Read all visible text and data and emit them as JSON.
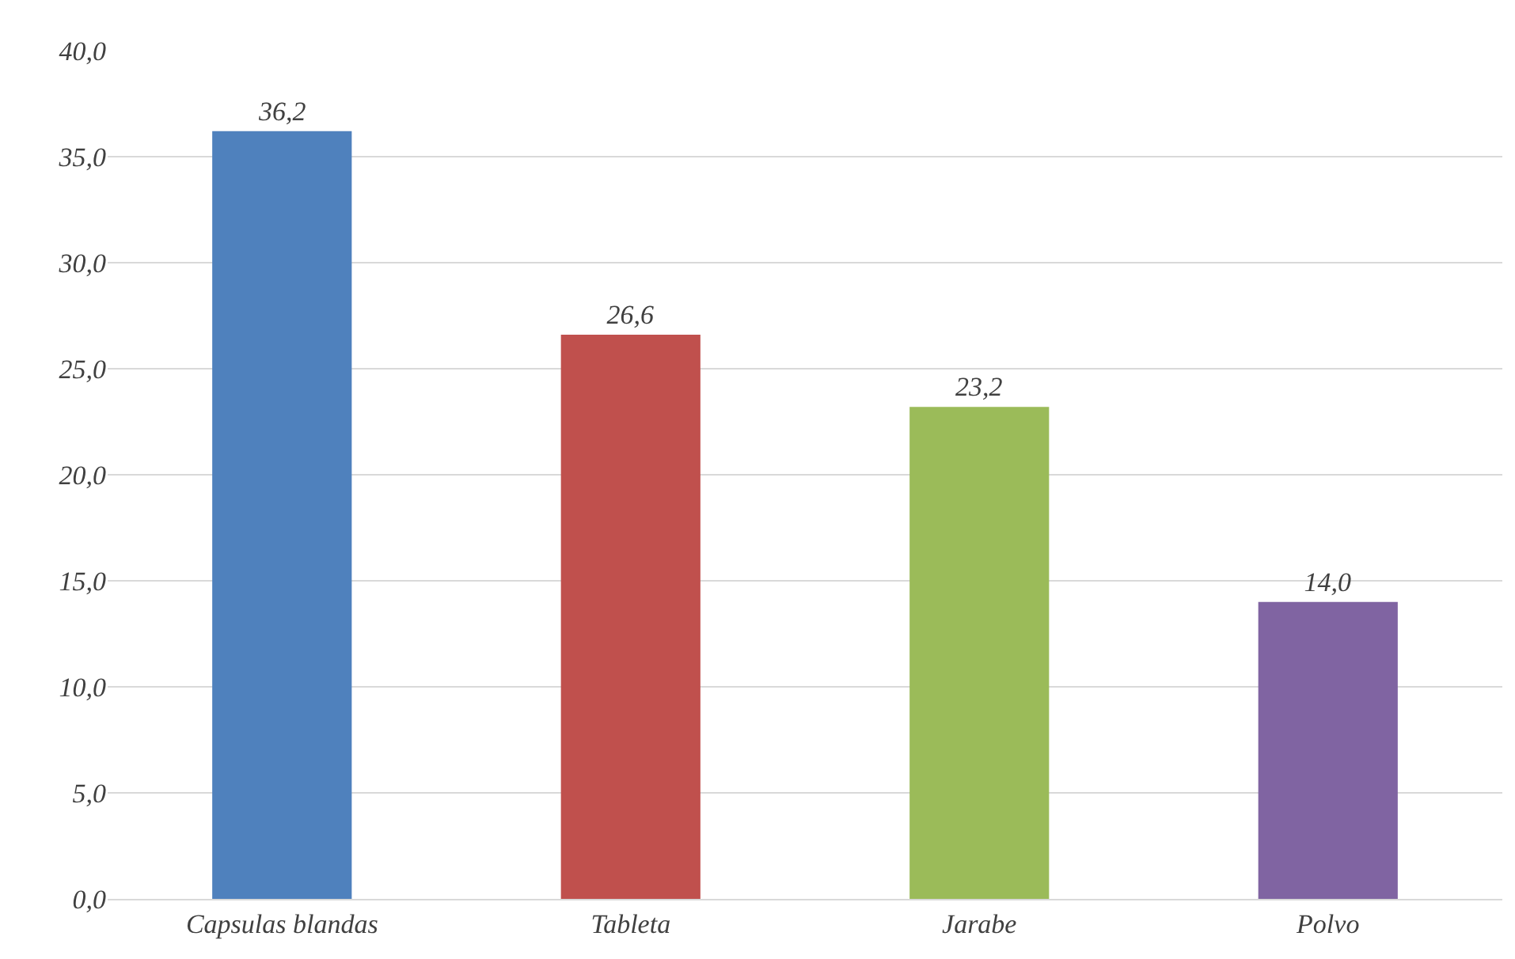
{
  "chart_data": {
    "type": "bar",
    "categories": [
      "Capsulas blandas",
      "Tableta",
      "Jarabe",
      "Polvo"
    ],
    "values": [
      36.2,
      26.6,
      23.2,
      14.0
    ],
    "colors": [
      "#4f81bd",
      "#c0504d",
      "#9bbb59",
      "#8064a2"
    ],
    "value_labels": [
      "36,2",
      "26,6",
      "23,2",
      "14,0"
    ],
    "ylim": [
      0,
      40
    ],
    "yticks": [
      {
        "value": 0,
        "label": "0,0"
      },
      {
        "value": 5,
        "label": "5,0"
      },
      {
        "value": 10,
        "label": "10,0"
      },
      {
        "value": 15,
        "label": "15,0"
      },
      {
        "value": 20,
        "label": "20,0"
      },
      {
        "value": 25,
        "label": "25,0"
      },
      {
        "value": 30,
        "label": "30,0"
      },
      {
        "value": 35,
        "label": "35,0"
      },
      {
        "value": 40,
        "label": "40,0"
      }
    ],
    "grid": "y",
    "legend": false
  }
}
